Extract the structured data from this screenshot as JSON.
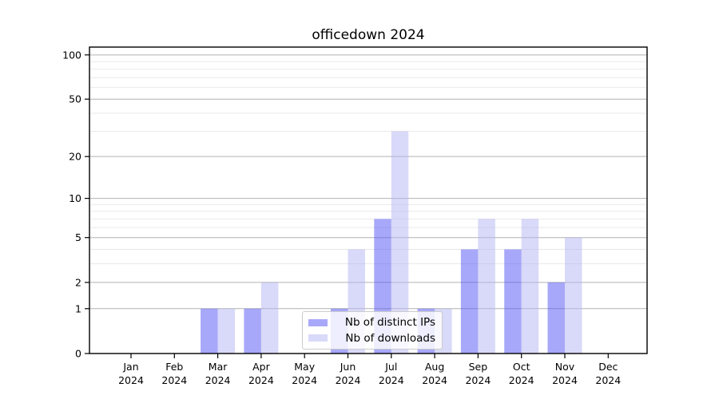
{
  "title": "officedown 2024",
  "chart_data": {
    "type": "bar",
    "title": "officedown 2024",
    "scale": "log1p",
    "categories": [
      "Jan",
      "Feb",
      "Mar",
      "Apr",
      "May",
      "Jun",
      "Jul",
      "Aug",
      "Sep",
      "Oct",
      "Nov",
      "Dec"
    ],
    "category_year": "2024",
    "series": [
      {
        "name": "Nb of distinct IPs",
        "color": "rgba(81,81,245,0.5)",
        "values": [
          0,
          0,
          1,
          1,
          0,
          1,
          7,
          1,
          4,
          4,
          2,
          0
        ]
      },
      {
        "name": "Nb of downloads",
        "color": "rgba(179,179,243,0.5)",
        "values": [
          0,
          0,
          1,
          2,
          0,
          4,
          30,
          1,
          7,
          7,
          5,
          0
        ]
      }
    ],
    "yticks": [
      0,
      1,
      2,
      5,
      10,
      20,
      50,
      100
    ],
    "minor_gridlines": [
      3,
      4,
      6,
      7,
      8,
      9,
      30,
      40,
      60,
      70,
      80,
      90
    ],
    "ylim": [
      0,
      113
    ],
    "xlabel": "",
    "ylabel": "",
    "grid": true,
    "legend_position": "inside-bottom-center"
  },
  "colors": {
    "major_grid": "#b2b2b2",
    "minor_grid": "#e7e7e7",
    "axis": "#000000",
    "tick_label": "#000000",
    "background": "#ffffff",
    "legend_border": "#cccccc",
    "legend_background": "rgba(255,255,255,0.8)"
  }
}
